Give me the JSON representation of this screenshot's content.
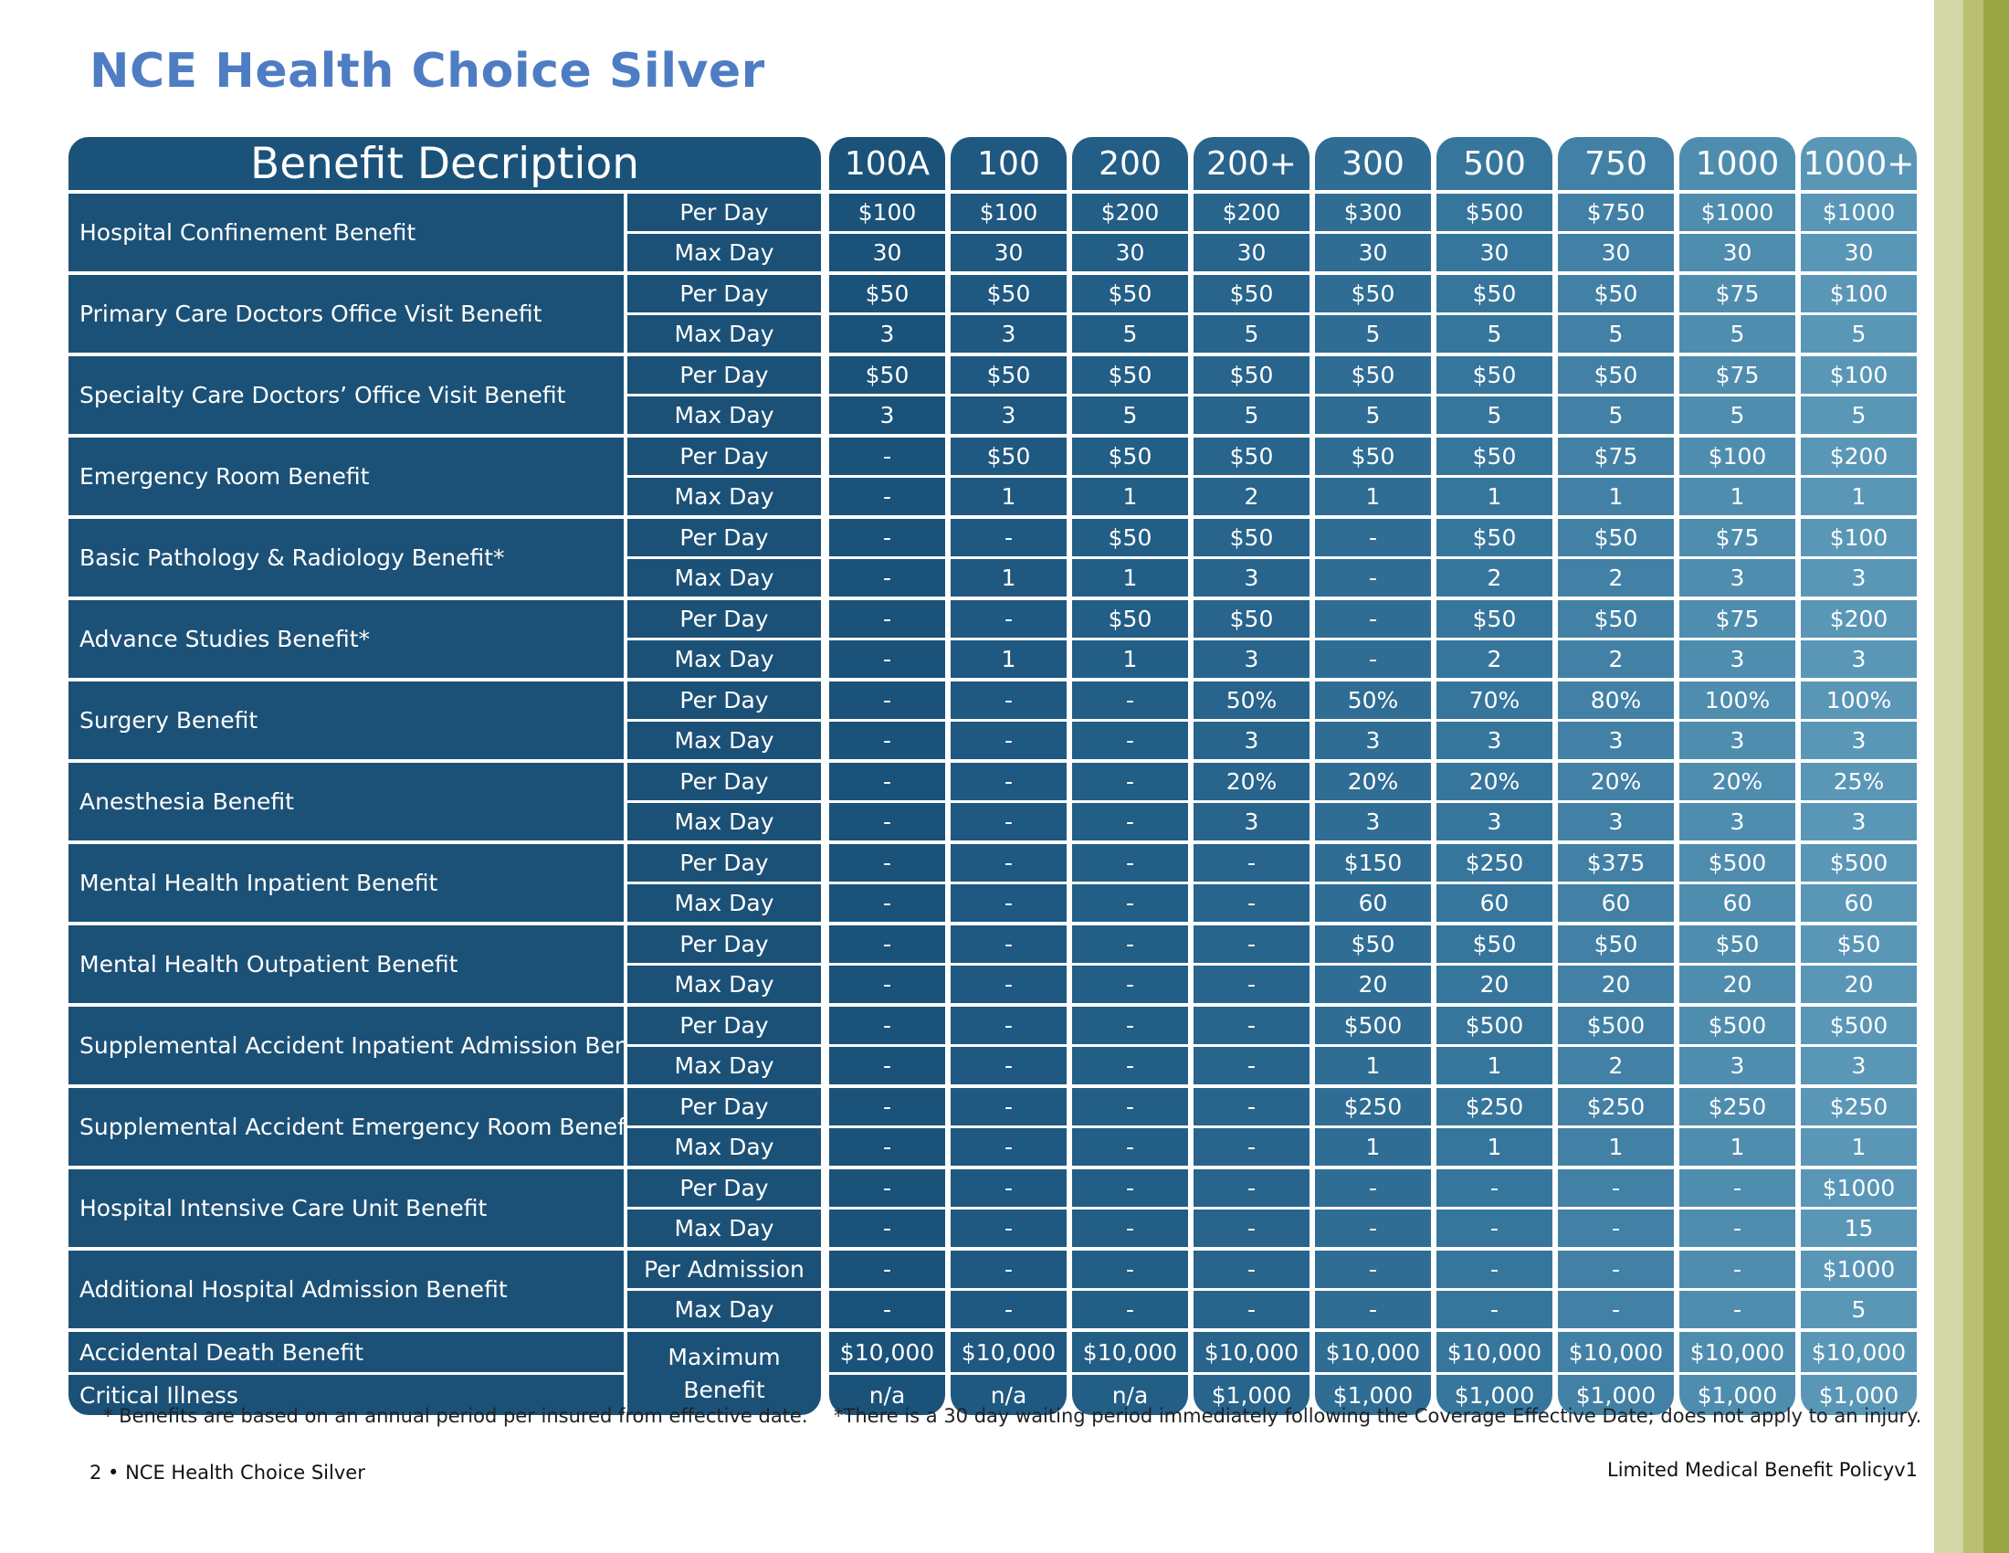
{
  "title": "NCE Health Choice Silver",
  "table": {
    "description_header": "Benefit Decription",
    "plans": [
      "100A",
      "100",
      "200",
      "200+",
      "300",
      "500",
      "750",
      "1000",
      "1000+"
    ],
    "plan_colors": [
      "#1b5279",
      "#1f5880",
      "#235e86",
      "#28648c",
      "#2f6d94",
      "#37769c",
      "#4281a5",
      "#4f8daf",
      "#5a97b7"
    ],
    "benefits": [
      {
        "name": "Hospital Confinement Benefit",
        "rows": [
          {
            "label": "Per Day",
            "values": [
              "$100",
              "$100",
              "$200",
              "$200",
              "$300",
              "$500",
              "$750",
              "$1000",
              "$1000"
            ]
          },
          {
            "label": "Max Day",
            "values": [
              "30",
              "30",
              "30",
              "30",
              "30",
              "30",
              "30",
              "30",
              "30"
            ]
          }
        ]
      },
      {
        "name": "Primary Care Doctors Office Visit Benefit",
        "rows": [
          {
            "label": "Per Day",
            "values": [
              "$50",
              "$50",
              "$50",
              "$50",
              "$50",
              "$50",
              "$50",
              "$75",
              "$100"
            ]
          },
          {
            "label": "Max Day",
            "values": [
              "3",
              "3",
              "5",
              "5",
              "5",
              "5",
              "5",
              "5",
              "5"
            ]
          }
        ]
      },
      {
        "name": "Specialty Care Doctors’ Office Visit Benefit",
        "rows": [
          {
            "label": "Per Day",
            "values": [
              "$50",
              "$50",
              "$50",
              "$50",
              "$50",
              "$50",
              "$50",
              "$75",
              "$100"
            ]
          },
          {
            "label": "Max Day",
            "values": [
              "3",
              "3",
              "5",
              "5",
              "5",
              "5",
              "5",
              "5",
              "5"
            ]
          }
        ]
      },
      {
        "name": "Emergency Room Benefit",
        "rows": [
          {
            "label": "Per Day",
            "values": [
              "-",
              "$50",
              "$50",
              "$50",
              "$50",
              "$50",
              "$75",
              "$100",
              "$200"
            ]
          },
          {
            "label": "Max Day",
            "values": [
              "-",
              "1",
              "1",
              "2",
              "1",
              "1",
              "1",
              "1",
              "1"
            ]
          }
        ]
      },
      {
        "name": "Basic Pathology & Radiology Benefit*",
        "rows": [
          {
            "label": "Per Day",
            "values": [
              "-",
              "-",
              "$50",
              "$50",
              "-",
              "$50",
              "$50",
              "$75",
              "$100"
            ]
          },
          {
            "label": "Max Day",
            "values": [
              "-",
              "1",
              "1",
              "3",
              "-",
              "2",
              "2",
              "3",
              "3"
            ]
          }
        ]
      },
      {
        "name": "Advance Studies Benefit*",
        "rows": [
          {
            "label": "Per Day",
            "values": [
              "-",
              "-",
              "$50",
              "$50",
              "-",
              "$50",
              "$50",
              "$75",
              "$200"
            ]
          },
          {
            "label": "Max Day",
            "values": [
              "-",
              "1",
              "1",
              "3",
              "-",
              "2",
              "2",
              "3",
              "3"
            ]
          }
        ]
      },
      {
        "name": "Surgery Benefit",
        "rows": [
          {
            "label": "Per Day",
            "values": [
              "-",
              "-",
              "-",
              "50%",
              "50%",
              "70%",
              "80%",
              "100%",
              "100%"
            ]
          },
          {
            "label": "Max Day",
            "values": [
              "-",
              "-",
              "-",
              "3",
              "3",
              "3",
              "3",
              "3",
              "3"
            ]
          }
        ]
      },
      {
        "name": "Anesthesia Benefit",
        "rows": [
          {
            "label": "Per Day",
            "values": [
              "-",
              "-",
              "-",
              "20%",
              "20%",
              "20%",
              "20%",
              "20%",
              "25%"
            ]
          },
          {
            "label": "Max Day",
            "values": [
              "-",
              "-",
              "-",
              "3",
              "3",
              "3",
              "3",
              "3",
              "3"
            ]
          }
        ]
      },
      {
        "name": "Mental Health Inpatient Benefit",
        "rows": [
          {
            "label": "Per Day",
            "values": [
              "-",
              "-",
              "-",
              "-",
              "$150",
              "$250",
              "$375",
              "$500",
              "$500"
            ]
          },
          {
            "label": "Max Day",
            "values": [
              "-",
              "-",
              "-",
              "-",
              "60",
              "60",
              "60",
              "60",
              "60"
            ]
          }
        ]
      },
      {
        "name": "Mental Health Outpatient Benefit",
        "rows": [
          {
            "label": "Per Day",
            "values": [
              "-",
              "-",
              "-",
              "-",
              "$50",
              "$50",
              "$50",
              "$50",
              "$50"
            ]
          },
          {
            "label": "Max Day",
            "values": [
              "-",
              "-",
              "-",
              "-",
              "20",
              "20",
              "20",
              "20",
              "20"
            ]
          }
        ]
      },
      {
        "name": "Supplemental Accident Inpatient Admission Benefit",
        "rows": [
          {
            "label": "Per Day",
            "values": [
              "-",
              "-",
              "-",
              "-",
              "$500",
              "$500",
              "$500",
              "$500",
              "$500"
            ]
          },
          {
            "label": "Max Day",
            "values": [
              "-",
              "-",
              "-",
              "-",
              "1",
              "1",
              "2",
              "3",
              "3"
            ]
          }
        ]
      },
      {
        "name": "Supplemental Accident Emergency Room Benefit",
        "rows": [
          {
            "label": "Per Day",
            "values": [
              "-",
              "-",
              "-",
              "-",
              "$250",
              "$250",
              "$250",
              "$250",
              "$250"
            ]
          },
          {
            "label": "Max Day",
            "values": [
              "-",
              "-",
              "-",
              "-",
              "1",
              "1",
              "1",
              "1",
              "1"
            ]
          }
        ]
      },
      {
        "name": "Hospital Intensive Care Unit Benefit",
        "rows": [
          {
            "label": "Per Day",
            "values": [
              "-",
              "-",
              "-",
              "-",
              "-",
              "-",
              "-",
              "-",
              "$1000"
            ]
          },
          {
            "label": "Max Day",
            "values": [
              "-",
              "-",
              "-",
              "-",
              "-",
              "-",
              "-",
              "-",
              "15"
            ]
          }
        ]
      },
      {
        "name": "Additional Hospital Admission Benefit",
        "rows": [
          {
            "label": "Per Admission",
            "values": [
              "-",
              "-",
              "-",
              "-",
              "-",
              "-",
              "-",
              "-",
              "$1000"
            ]
          },
          {
            "label": "Max Day",
            "values": [
              "-",
              "-",
              "-",
              "-",
              "-",
              "-",
              "-",
              "-",
              "5"
            ]
          }
        ]
      }
    ],
    "final_label": "Maximum Benefit",
    "final_rows": [
      {
        "name": "Accidental Death Benefit",
        "values": [
          "$10,000",
          "$10,000",
          "$10,000",
          "$10,000",
          "$10,000",
          "$10,000",
          "$10,000",
          "$10,000",
          "$10,000"
        ]
      },
      {
        "name": "Critical Illness",
        "values": [
          "n/a",
          "n/a",
          "n/a",
          "$1,000",
          "$1,000",
          "$1,000",
          "$1,000",
          "$1,000",
          "$1,000"
        ]
      }
    ]
  },
  "footnotes": {
    "left": "* Benefits are based on an annual period per insured from effective date.",
    "right": "*There is a 30 day waiting period immediately following the Coverage Effective Date; does not apply to an injury."
  },
  "footer": {
    "page": "2 • NCE Health Choice Silver",
    "policy": "Limited Medical Benefit Policyv1"
  }
}
